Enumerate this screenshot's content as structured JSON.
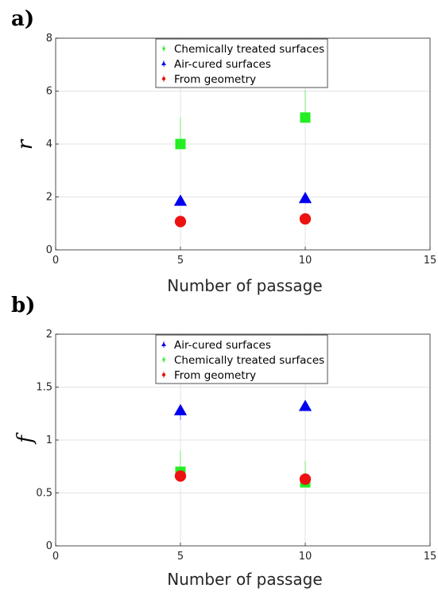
{
  "chart_data": [
    {
      "panel_label": "a)",
      "type": "scatter",
      "xlabel": "Number of passage",
      "ylabel": "r",
      "xlim": [
        0,
        15
      ],
      "ylim": [
        0,
        8
      ],
      "xticks": [
        "0",
        "5",
        "10",
        "15"
      ],
      "yticks": [
        "0",
        "2",
        "4",
        "6",
        "8"
      ],
      "grid": true,
      "legend_position": "top-center",
      "series": [
        {
          "name": "Chemically treated surfaces",
          "marker": "square",
          "color": "#22ee22",
          "x": [
            5,
            10
          ],
          "y": [
            4.0,
            5.0
          ],
          "yerr_high": [
            5.0,
            6.05
          ],
          "yerr_low": [
            4.0,
            5.0
          ]
        },
        {
          "name": "Air-cured surfaces",
          "marker": "triangle",
          "color": "#0000ee",
          "x": [
            5,
            10
          ],
          "y": [
            1.85,
            1.95
          ],
          "yerr_high": [
            1.85,
            1.95
          ],
          "yerr_low": [
            1.85,
            1.95
          ]
        },
        {
          "name": "From geometry",
          "marker": "circle",
          "color": "#ee1111",
          "x": [
            5,
            10
          ],
          "y": [
            1.07,
            1.17
          ],
          "yerr_high": [
            1.07,
            1.17
          ],
          "yerr_low": [
            1.07,
            1.17
          ]
        }
      ]
    },
    {
      "panel_label": "b)",
      "type": "scatter",
      "xlabel": "Number of passage",
      "ylabel": "f",
      "xlim": [
        0,
        15
      ],
      "ylim": [
        0,
        2
      ],
      "xticks": [
        "0",
        "5",
        "10",
        "15"
      ],
      "yticks": [
        "0",
        "0.5",
        "1",
        "1.5",
        "2"
      ],
      "grid": true,
      "legend_position": "top-center",
      "series": [
        {
          "name": "Air-cured surfaces",
          "marker": "triangle",
          "color": "#0000ee",
          "x": [
            5,
            10
          ],
          "y": [
            1.28,
            1.32
          ],
          "yerr_high": [
            1.28,
            1.32
          ],
          "yerr_low": [
            1.19,
            1.32
          ]
        },
        {
          "name": "Chemically treated surfaces",
          "marker": "square",
          "color": "#22ee22",
          "x": [
            5,
            10
          ],
          "y": [
            0.7,
            0.6
          ],
          "yerr_high": [
            0.9,
            0.8
          ],
          "yerr_low": [
            0.7,
            0.6
          ]
        },
        {
          "name": "From geometry",
          "marker": "circle",
          "color": "#ee1111",
          "x": [
            5,
            10
          ],
          "y": [
            0.66,
            0.63
          ],
          "yerr_high": [
            0.66,
            0.63
          ],
          "yerr_low": [
            0.66,
            0.63
          ]
        }
      ]
    }
  ]
}
